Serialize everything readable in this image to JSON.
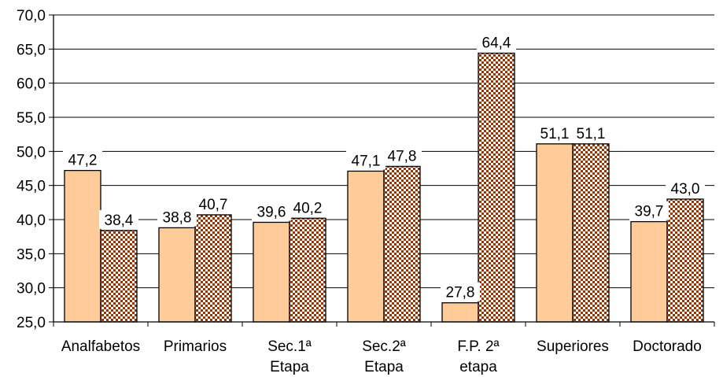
{
  "chart_data": {
    "type": "bar",
    "categories": [
      [
        "Analfabetos"
      ],
      [
        "Primarios"
      ],
      [
        "Sec.1ª",
        "Etapa"
      ],
      [
        "Sec.2ª",
        "Etapa"
      ],
      [
        "F.P. 2ª",
        "etapa"
      ],
      [
        "Superiores"
      ],
      [
        "Doctorado"
      ]
    ],
    "series": [
      {
        "values": [
          47.2,
          38.8,
          39.6,
          47.1,
          27.8,
          51.1,
          39.7
        ],
        "labels": [
          "47,2",
          "38,8",
          "39,6",
          "47,1",
          "27,8",
          "51,1",
          "39,7"
        ],
        "color": "#FFCC99",
        "pattern": "solid"
      },
      {
        "values": [
          38.4,
          40.7,
          40.2,
          47.8,
          64.4,
          51.1,
          43.0
        ],
        "labels": [
          "38,4",
          "40,7",
          "40,2",
          "47,8",
          "64,4",
          "51,1",
          "43,0"
        ],
        "color": "#993300",
        "pattern": "checkerboard"
      }
    ],
    "yticks": [
      "25,0",
      "30,0",
      "35,0",
      "40,0",
      "45,0",
      "50,0",
      "55,0",
      "60,0",
      "65,0",
      "70,0"
    ],
    "ylim": [
      25,
      70
    ],
    "ytick_step": 5,
    "grid": true,
    "legend": "none"
  }
}
